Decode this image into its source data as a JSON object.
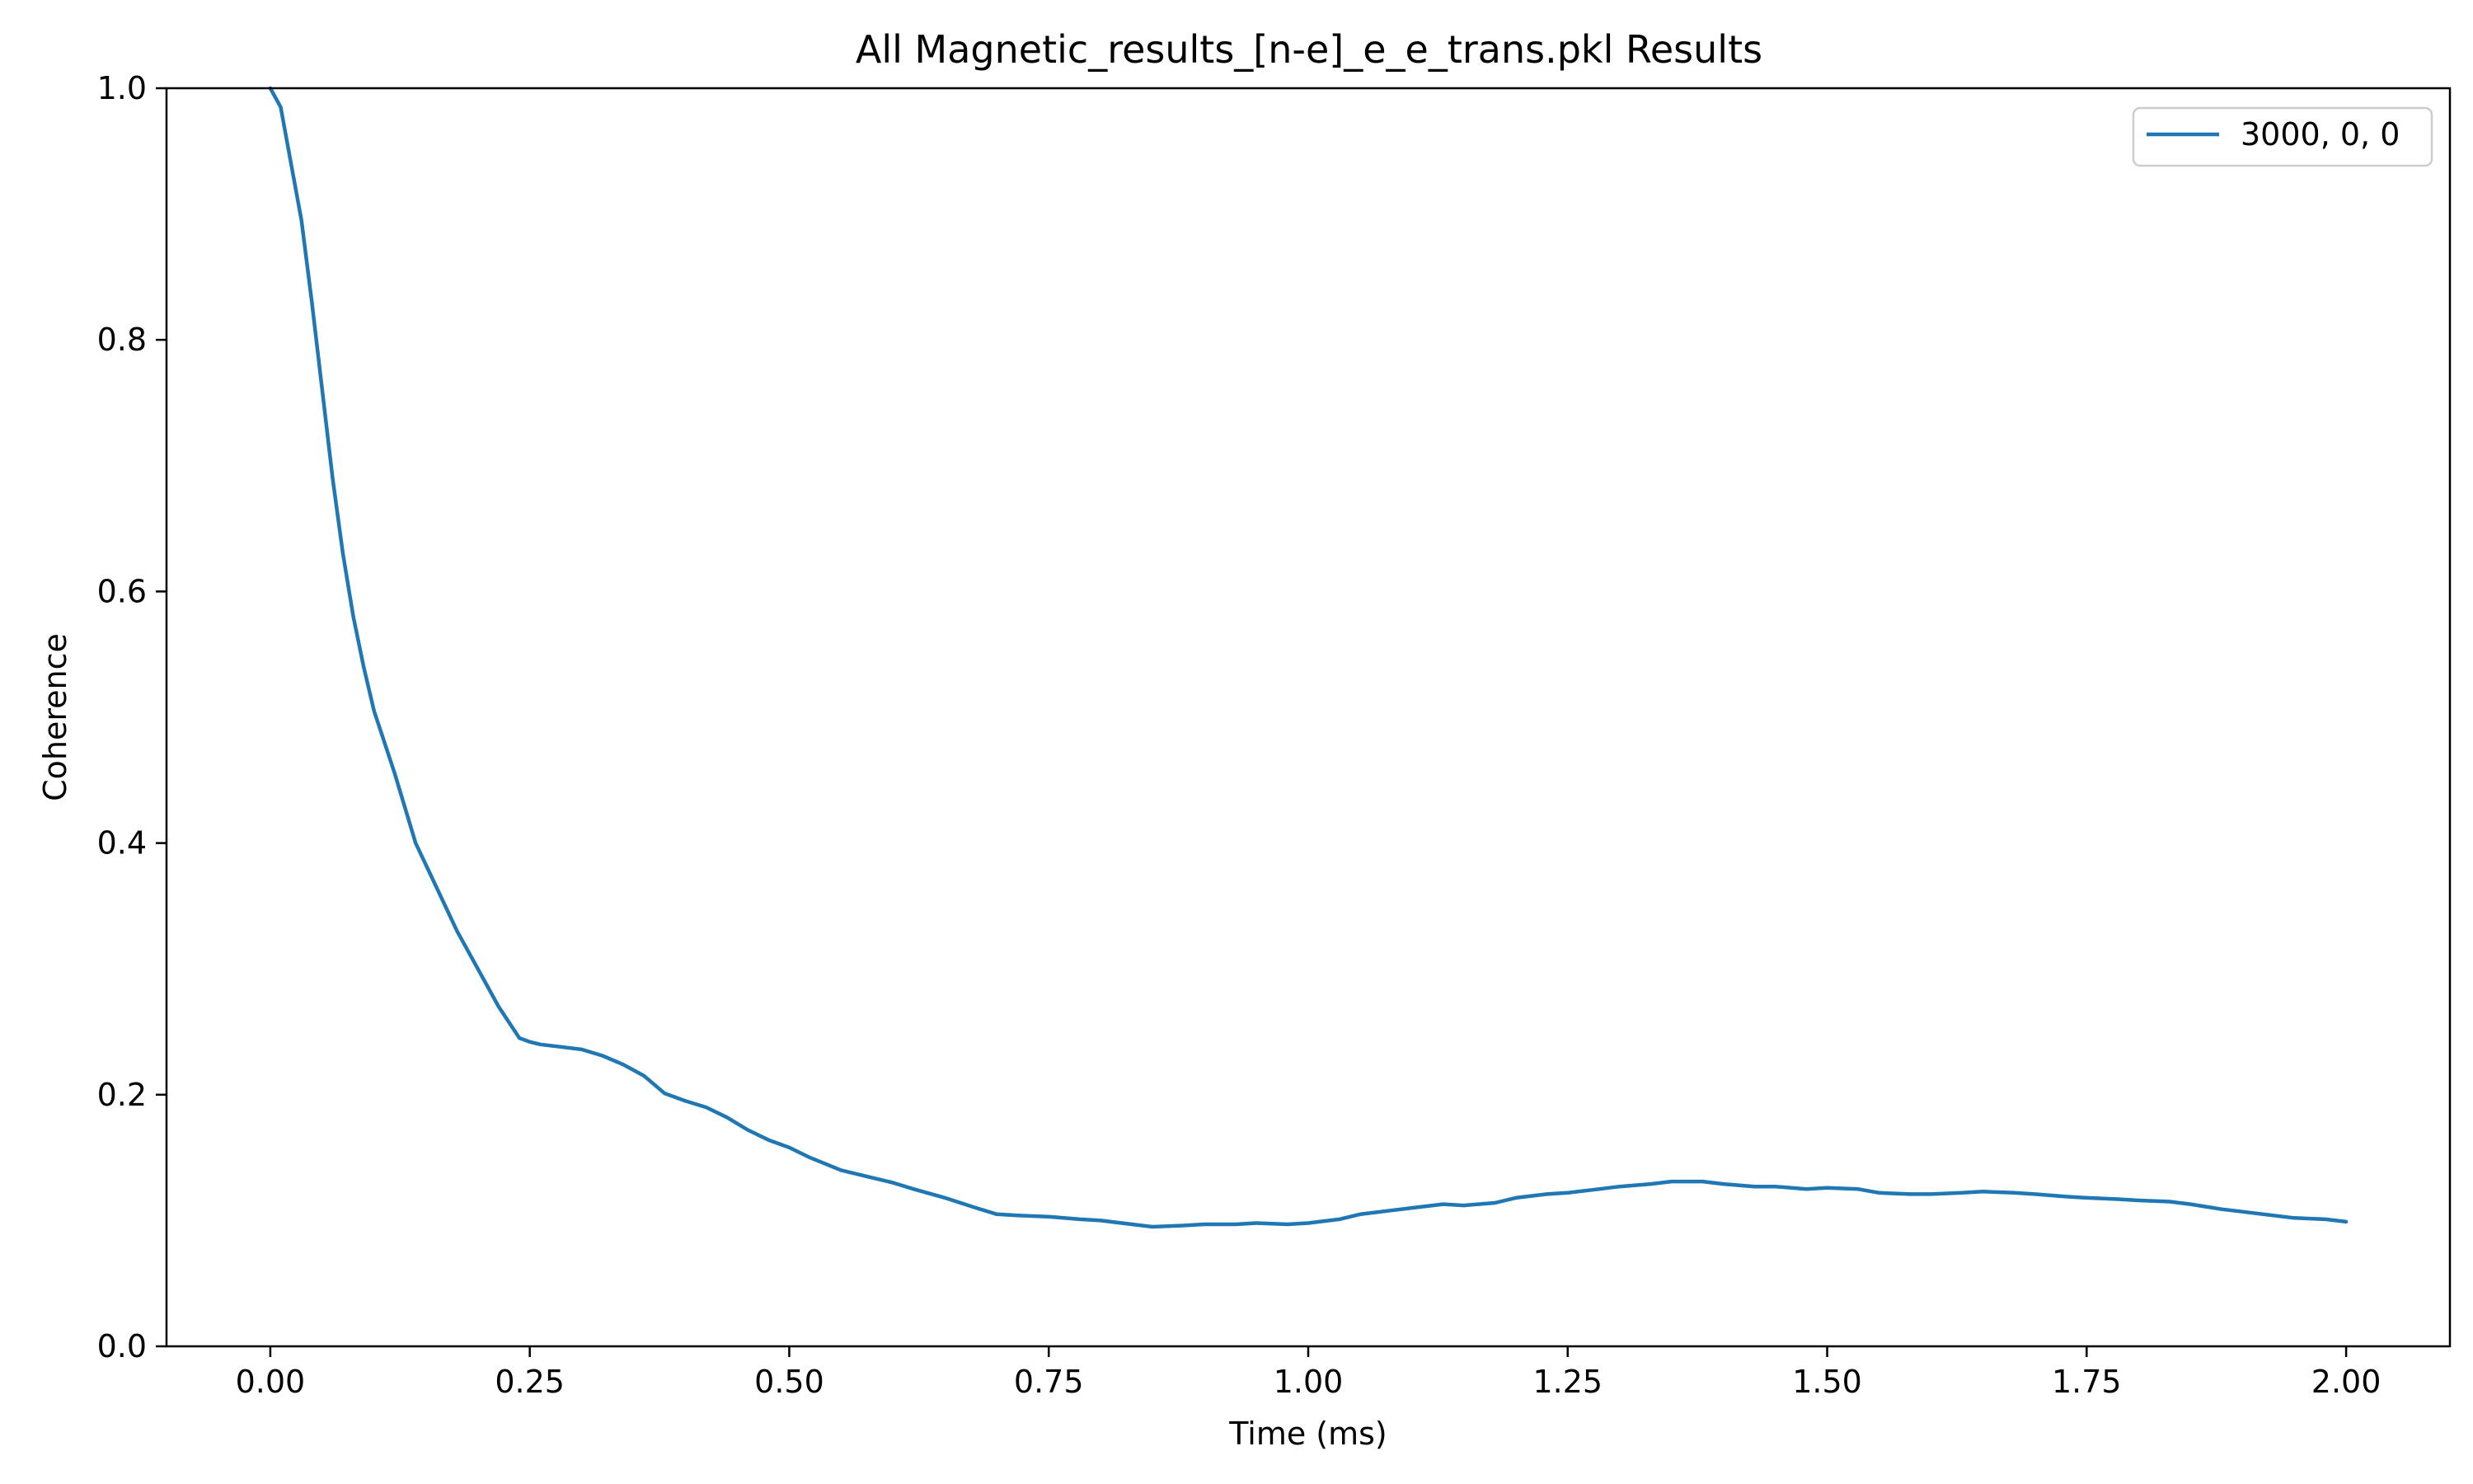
{
  "chart_data": {
    "type": "line",
    "title": "All Magnetic_results_[n-e]_e_e_trans.pkl Results",
    "xlabel": "Time (ms)",
    "ylabel": "Coherence",
    "xlim": [
      -0.1,
      2.1
    ],
    "ylim": [
      0.0,
      1.0
    ],
    "xticks": [
      0.0,
      0.25,
      0.5,
      0.75,
      1.0,
      1.25,
      1.5,
      1.75,
      2.0
    ],
    "xtick_labels": [
      "0.00",
      "0.25",
      "0.50",
      "0.75",
      "1.00",
      "1.25",
      "1.50",
      "1.75",
      "2.00"
    ],
    "yticks": [
      0.0,
      0.2,
      0.4,
      0.6,
      0.8,
      1.0
    ],
    "ytick_labels": [
      "0.0",
      "0.2",
      "0.4",
      "0.6",
      "0.8",
      "1.0"
    ],
    "grid": false,
    "legend_position": "top-right",
    "series": [
      {
        "name": "3000, 0, 0",
        "color": "#1f77b4",
        "x": [
          0.0,
          0.01,
          0.02,
          0.03,
          0.04,
          0.05,
          0.06,
          0.07,
          0.08,
          0.09,
          0.1,
          0.12,
          0.14,
          0.16,
          0.18,
          0.2,
          0.22,
          0.24,
          0.25,
          0.26,
          0.28,
          0.3,
          0.32,
          0.34,
          0.36,
          0.38,
          0.4,
          0.42,
          0.44,
          0.46,
          0.48,
          0.5,
          0.52,
          0.55,
          0.58,
          0.6,
          0.62,
          0.65,
          0.68,
          0.7,
          0.72,
          0.75,
          0.78,
          0.8,
          0.83,
          0.85,
          0.88,
          0.9,
          0.93,
          0.95,
          0.98,
          1.0,
          1.03,
          1.05,
          1.08,
          1.1,
          1.13,
          1.15,
          1.18,
          1.2,
          1.23,
          1.25,
          1.28,
          1.3,
          1.33,
          1.35,
          1.38,
          1.4,
          1.43,
          1.45,
          1.48,
          1.5,
          1.53,
          1.55,
          1.58,
          1.6,
          1.63,
          1.65,
          1.68,
          1.7,
          1.73,
          1.75,
          1.78,
          1.8,
          1.83,
          1.85,
          1.88,
          1.9,
          1.93,
          1.95,
          1.98,
          2.0
        ],
        "y": [
          1.0,
          0.985,
          0.94,
          0.895,
          0.83,
          0.76,
          0.69,
          0.63,
          0.58,
          0.54,
          0.505,
          0.455,
          0.4,
          0.365,
          0.33,
          0.3,
          0.27,
          0.245,
          0.242,
          0.24,
          0.238,
          0.236,
          0.231,
          0.224,
          0.215,
          0.201,
          0.195,
          0.19,
          0.182,
          0.172,
          0.164,
          0.158,
          0.15,
          0.14,
          0.134,
          0.13,
          0.125,
          0.118,
          0.11,
          0.105,
          0.104,
          0.103,
          0.101,
          0.1,
          0.097,
          0.095,
          0.096,
          0.097,
          0.097,
          0.098,
          0.097,
          0.098,
          0.101,
          0.105,
          0.108,
          0.11,
          0.113,
          0.112,
          0.114,
          0.118,
          0.121,
          0.122,
          0.125,
          0.127,
          0.129,
          0.131,
          0.131,
          0.129,
          0.127,
          0.127,
          0.125,
          0.126,
          0.125,
          0.122,
          0.121,
          0.121,
          0.122,
          0.123,
          0.122,
          0.121,
          0.119,
          0.118,
          0.117,
          0.116,
          0.115,
          0.113,
          0.109,
          0.107,
          0.104,
          0.102,
          0.101,
          0.099
        ]
      }
    ]
  }
}
